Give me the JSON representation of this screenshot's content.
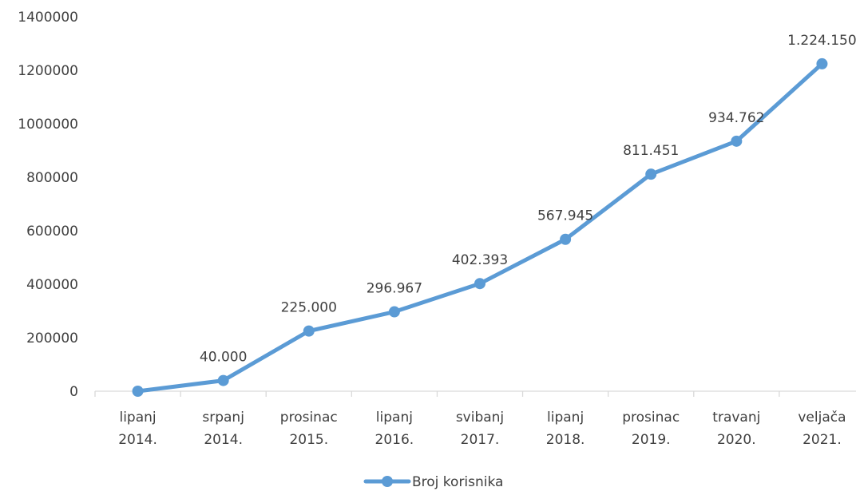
{
  "chart_data": {
    "type": "line",
    "categories": [
      [
        "lipanj",
        "2014."
      ],
      [
        "srpanj",
        "2014."
      ],
      [
        "prosinac",
        "2015."
      ],
      [
        "lipanj",
        "2016."
      ],
      [
        "svibanj",
        "2017."
      ],
      [
        "lipanj",
        "2018."
      ],
      [
        "prosinac",
        "2019."
      ],
      [
        "travanj",
        "2020."
      ],
      [
        "veljača",
        "2021."
      ]
    ],
    "series": [
      {
        "name": "Broj korisnika",
        "values": [
          0,
          40000,
          225000,
          296967,
          402393,
          567945,
          811451,
          934762,
          1224150
        ],
        "data_labels": [
          "",
          "40.000",
          "225.000",
          "296.967",
          "402.393",
          "567.945",
          "811.451",
          "934.762",
          "1.224.150"
        ],
        "color": "#5b9bd5"
      }
    ],
    "ylim": [
      0,
      1400000
    ],
    "yticks": [
      0,
      200000,
      400000,
      600000,
      800000,
      1000000,
      1200000,
      1400000
    ],
    "ytick_labels": [
      "0",
      "200000",
      "400000",
      "600000",
      "800000",
      "1000000",
      "1200000",
      "1400000"
    ],
    "grid": false,
    "legend_position": "bottom-center",
    "axis_color": "#d9d9d9",
    "text_color": "#404040"
  }
}
